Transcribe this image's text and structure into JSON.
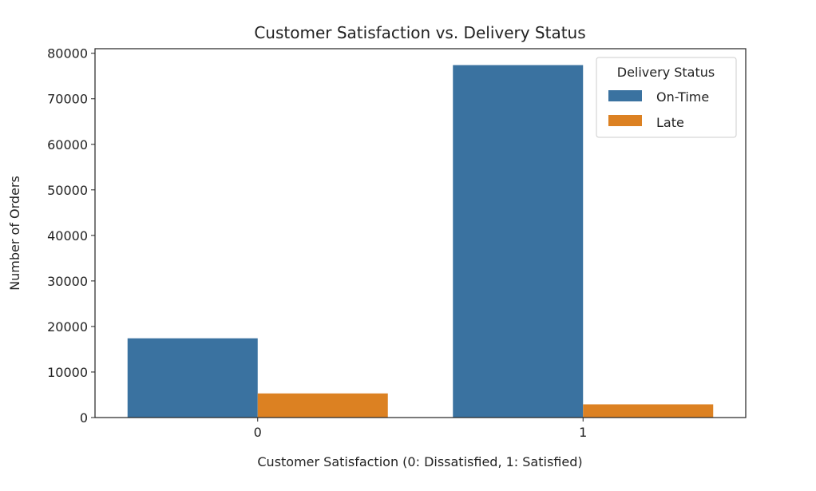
{
  "chart_data": {
    "type": "bar",
    "title": "Customer Satisfaction vs. Delivery Status",
    "xlabel": "Customer Satisfaction (0: Dissatisfied, 1: Satisfied)",
    "ylabel": "Number of Orders",
    "categories": [
      "0",
      "1"
    ],
    "series": [
      {
        "name": "On-Time",
        "values": [
          17400,
          77400
        ],
        "color": "#3a72a0"
      },
      {
        "name": "Late",
        "values": [
          5300,
          2900
        ],
        "color": "#dc8122"
      }
    ],
    "ylim": [
      0,
      81000
    ],
    "yticks": [
      0,
      10000,
      20000,
      30000,
      40000,
      50000,
      60000,
      70000,
      80000
    ],
    "legend": {
      "title": "Delivery Status",
      "placement": "top-right"
    },
    "grid": false
  }
}
